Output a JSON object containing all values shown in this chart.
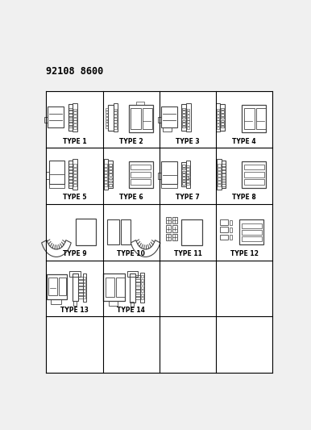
{
  "title": "92108 8600",
  "title_fontsize": 8.5,
  "background_color": "#f0f0f0",
  "grid_color": "#000000",
  "grid_rows": 5,
  "grid_cols": 4,
  "cell_labels": [
    "TYPE 1",
    "TYPE 2",
    "TYPE 3",
    "TYPE 4",
    "TYPE 5",
    "TYPE 6",
    "TYPE 7",
    "TYPE 8",
    "TYPE 9",
    "TYPE 10",
    "TYPE 11",
    "TYPE 12",
    "TYPE 13",
    "TYPE 14",
    "",
    "",
    "",
    "",
    "",
    ""
  ],
  "label_fontsize": 5.5,
  "connector_color": "#444444",
  "line_width": 0.8,
  "gx0": 0.03,
  "gx1": 0.97,
  "gy0": 0.03,
  "gy1": 0.88
}
